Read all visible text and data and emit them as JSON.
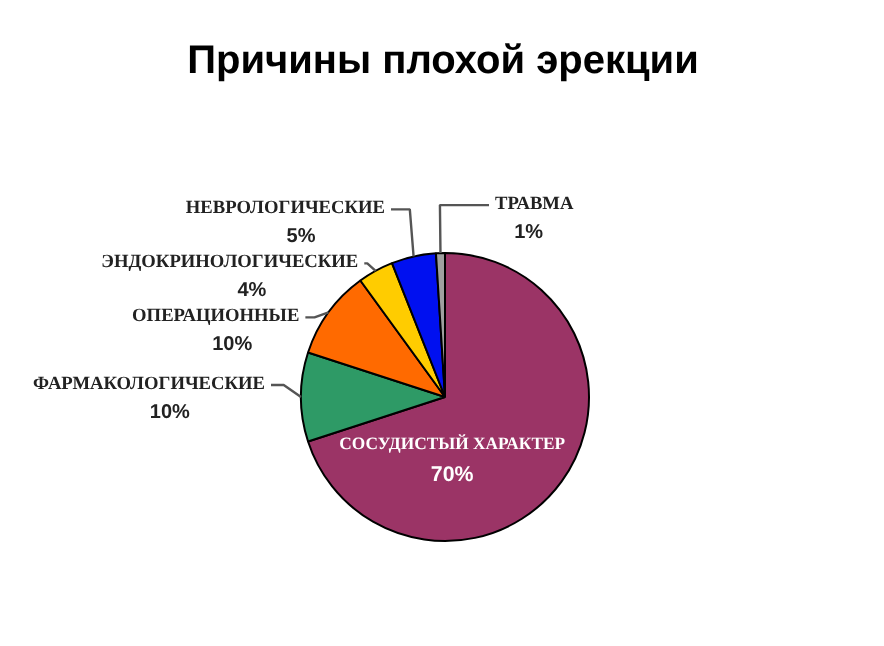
{
  "chart_data": {
    "type": "pie",
    "title": "Причины плохой эрекции",
    "categories": [
      "СОСУДИСТЫЙ ХАРАКТЕР",
      "ФАРМАКОЛОГИЧЕСКИЕ",
      "ОПЕРАЦИОННЫЕ",
      "ЭНДОКРИНОЛОГИЧЕСКИЕ",
      "НЕВРОЛОГИЧЕСКИЕ",
      "ТРАВМА"
    ],
    "values": [
      70,
      10,
      10,
      4,
      5,
      1
    ],
    "value_labels": [
      "70%",
      "10%",
      "10%",
      "4%",
      "5%",
      "1%"
    ],
    "colors": [
      "#9b3466",
      "#2e9a66",
      "#ff6a00",
      "#ffcc00",
      "#0010f0",
      "#a0a0a0"
    ]
  }
}
